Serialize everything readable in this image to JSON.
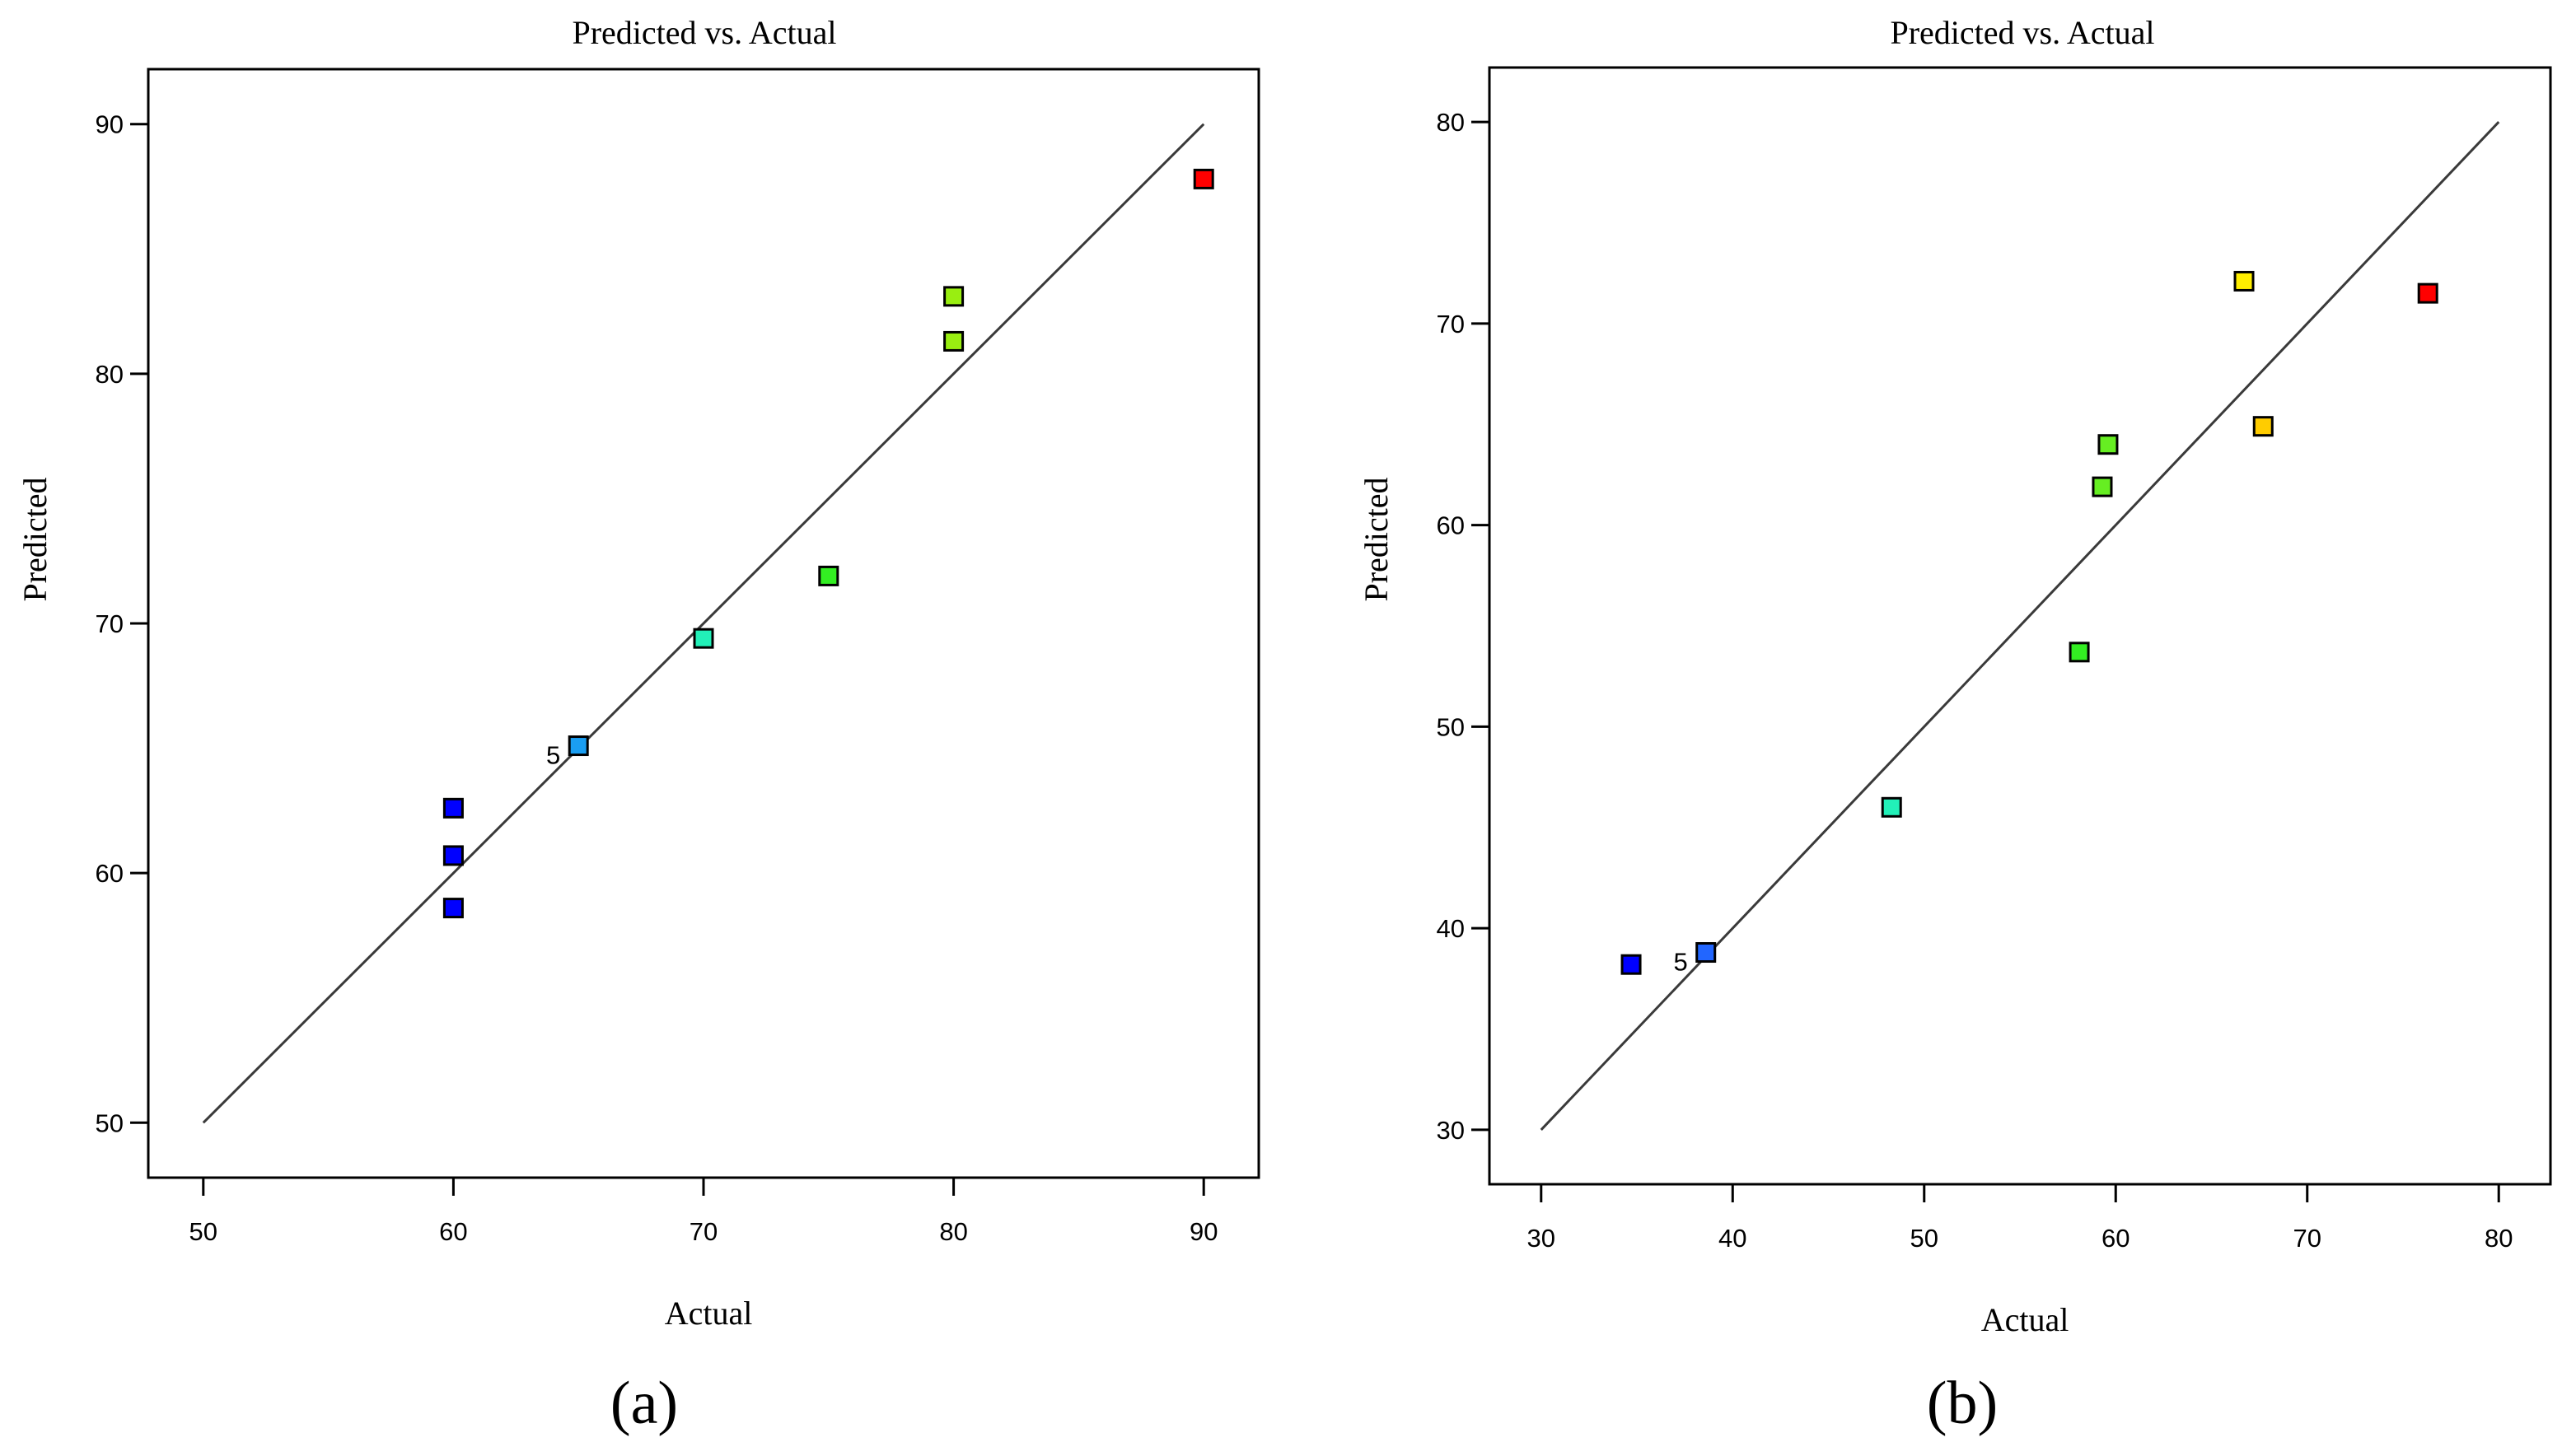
{
  "chart_data": [
    {
      "type": "scatter",
      "panel_label": "(a)",
      "title": "Predicted vs. Actual",
      "xlabel": "Actual",
      "ylabel": "Predicted",
      "xlim": [
        47.8,
        92.2
      ],
      "ylim": [
        47.8,
        92.2
      ],
      "xticks": [
        50,
        60,
        70,
        80,
        90
      ],
      "yticks": [
        50,
        60,
        70,
        80,
        90
      ],
      "reference_line": [
        [
          50,
          50
        ],
        [
          90,
          90
        ]
      ],
      "points": [
        {
          "x": 60,
          "y": 62.6,
          "color": "#0000ff"
        },
        {
          "x": 60,
          "y": 60.7,
          "color": "#0000ff"
        },
        {
          "x": 60,
          "y": 58.6,
          "color": "#0000ff"
        },
        {
          "x": 65,
          "y": 65.1,
          "color": "#1a9ef2",
          "label": "5"
        },
        {
          "x": 70,
          "y": 69.4,
          "color": "#22f0b8"
        },
        {
          "x": 75,
          "y": 71.9,
          "color": "#33ee22"
        },
        {
          "x": 80,
          "y": 81.3,
          "color": "#99ee11"
        },
        {
          "x": 80,
          "y": 83.1,
          "color": "#99ee11"
        },
        {
          "x": 90,
          "y": 87.8,
          "color": "#ff0000"
        }
      ]
    },
    {
      "type": "scatter",
      "panel_label": "(b)",
      "title": "Predicted vs. Actual",
      "xlabel": "Actual",
      "ylabel": "Predicted",
      "xlim": [
        27.3,
        82.7
      ],
      "ylim": [
        27.3,
        82.7
      ],
      "xticks": [
        30,
        40,
        50,
        60,
        70,
        80
      ],
      "yticks": [
        30,
        40,
        50,
        60,
        70,
        80
      ],
      "reference_line": [
        [
          30,
          30
        ],
        [
          80,
          80
        ]
      ],
      "points": [
        {
          "x": 34.7,
          "y": 38.2,
          "color": "#0000ff"
        },
        {
          "x": 38.6,
          "y": 38.8,
          "color": "#2266ff",
          "label": "5"
        },
        {
          "x": 48.3,
          "y": 46.0,
          "color": "#22f0b8"
        },
        {
          "x": 58.1,
          "y": 53.7,
          "color": "#33ee22"
        },
        {
          "x": 59.3,
          "y": 61.9,
          "color": "#66ee22"
        },
        {
          "x": 59.6,
          "y": 64.0,
          "color": "#66ee22"
        },
        {
          "x": 66.7,
          "y": 72.1,
          "color": "#ffee00"
        },
        {
          "x": 67.7,
          "y": 64.9,
          "color": "#ffcc00"
        },
        {
          "x": 76.3,
          "y": 71.5,
          "color": "#ff0000"
        }
      ]
    }
  ]
}
